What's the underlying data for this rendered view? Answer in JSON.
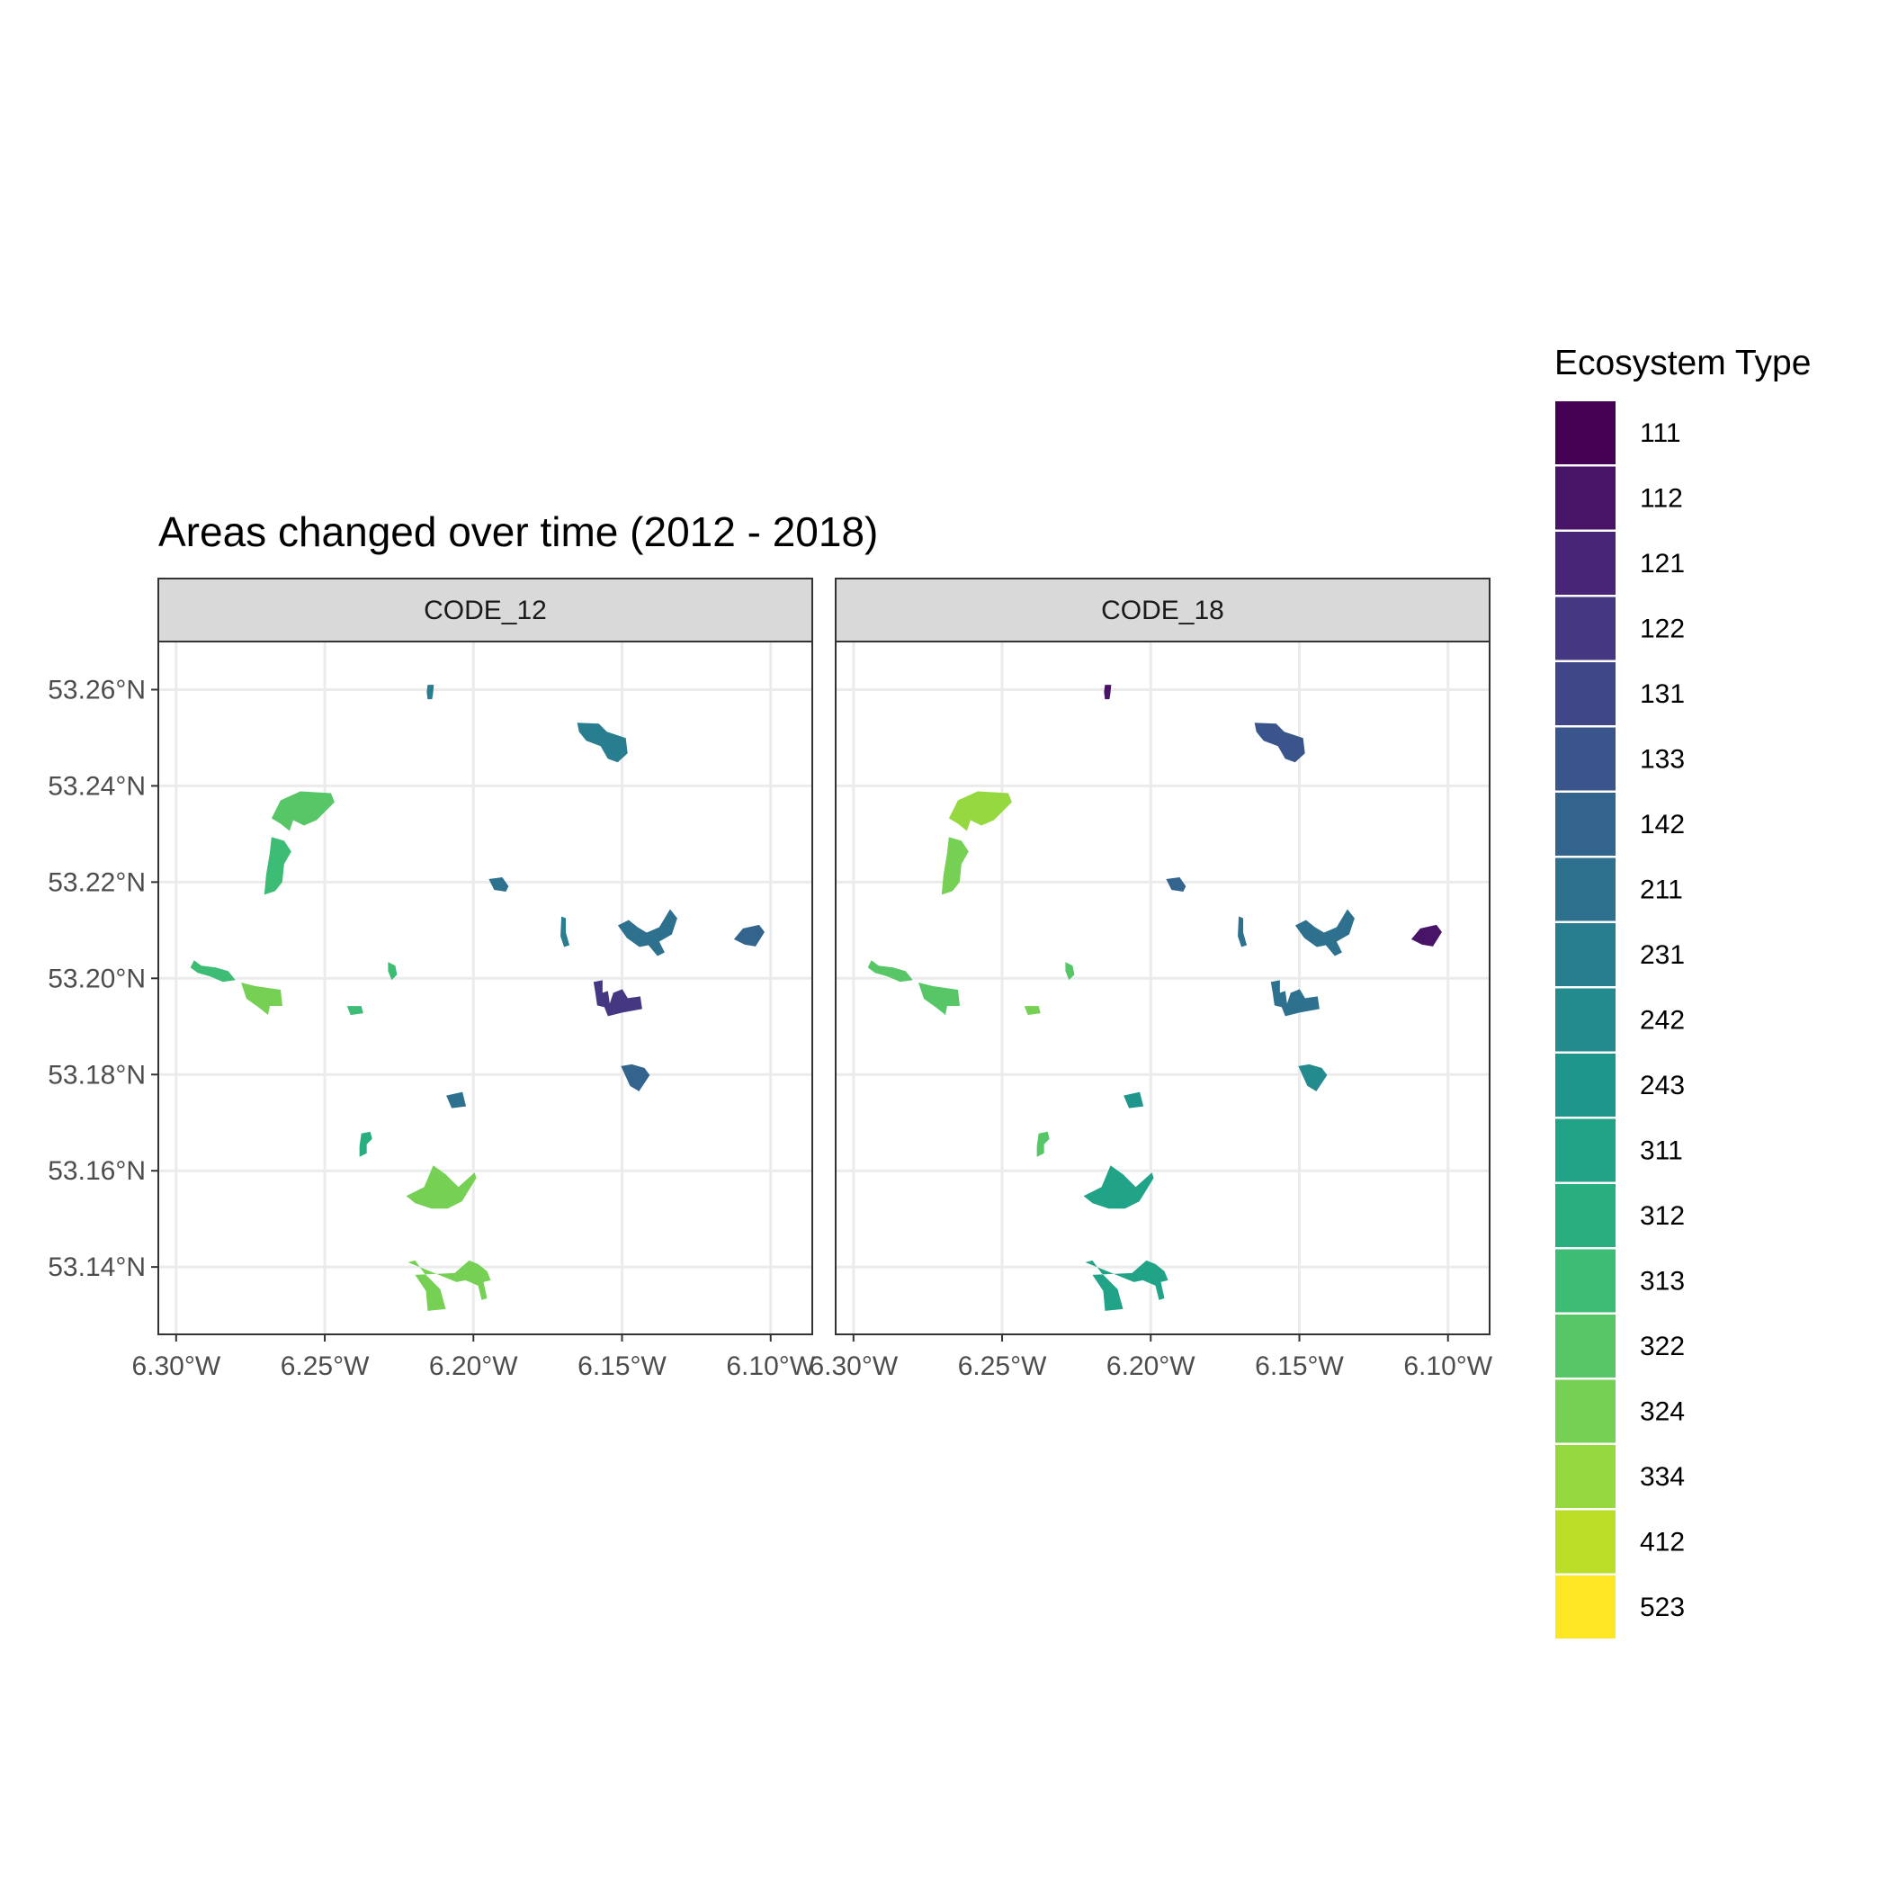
{
  "title": "Areas changed over time (2012 - 2018)",
  "panels": [
    {
      "label": "CODE_12"
    },
    {
      "label": "CODE_18"
    }
  ],
  "axes": {
    "x": {
      "ticks": [
        "6.30°W",
        "6.25°W",
        "6.20°W",
        "6.15°W",
        "6.10°W"
      ],
      "range": [
        -6.306,
        -6.086
      ]
    },
    "y": {
      "ticks": [
        "53.26°N",
        "53.24°N",
        "53.22°N",
        "53.20°N",
        "53.18°N",
        "53.16°N",
        "53.14°N"
      ],
      "range": [
        53.126,
        53.27
      ]
    }
  },
  "legend": {
    "title": "Ecosystem Type",
    "position": "right",
    "items": [
      {
        "code": "111",
        "color": "#440154"
      },
      {
        "code": "112",
        "color": "#481467"
      },
      {
        "code": "121",
        "color": "#482576"
      },
      {
        "code": "122",
        "color": "#453781"
      },
      {
        "code": "131",
        "color": "#3F4788"
      },
      {
        "code": "133",
        "color": "#39558C"
      },
      {
        "code": "142",
        "color": "#32648E"
      },
      {
        "code": "211",
        "color": "#2D718E"
      },
      {
        "code": "231",
        "color": "#287D8E"
      },
      {
        "code": "242",
        "color": "#238A8D"
      },
      {
        "code": "243",
        "color": "#1F968B"
      },
      {
        "code": "311",
        "color": "#20A386"
      },
      {
        "code": "312",
        "color": "#29AF7F"
      },
      {
        "code": "313",
        "color": "#3CBC75"
      },
      {
        "code": "322",
        "color": "#56C667"
      },
      {
        "code": "324",
        "color": "#75D054"
      },
      {
        "code": "334",
        "color": "#95D840"
      },
      {
        "code": "412",
        "color": "#BADE28"
      },
      {
        "code": "523",
        "color": "#FDE725"
      }
    ]
  },
  "map_data": {
    "type": "choropleth",
    "grid": true,
    "areas": [
      {
        "lon": -6.2145,
        "lat": 53.2595,
        "code12": "231",
        "code18": "112"
      },
      {
        "lon": -6.156,
        "lat": 53.249,
        "code12": "231",
        "code18": "133"
      },
      {
        "lon": -6.257,
        "lat": 53.2355,
        "code12": "322",
        "code18": "334"
      },
      {
        "lon": -6.2655,
        "lat": 53.223,
        "code12": "313",
        "code18": "324"
      },
      {
        "lon": -6.1915,
        "lat": 53.2195,
        "code12": "211",
        "code18": "142"
      },
      {
        "lon": -6.1695,
        "lat": 53.2095,
        "code12": "231",
        "code18": "211"
      },
      {
        "lon": -6.1405,
        "lat": 53.2095,
        "code12": "211",
        "code18": "211"
      },
      {
        "lon": -6.1075,
        "lat": 53.2085,
        "code12": "142",
        "code18": "112"
      },
      {
        "lon": -6.2855,
        "lat": 53.2015,
        "code12": "313",
        "code18": "322"
      },
      {
        "lon": -6.2715,
        "lat": 53.1965,
        "code12": "324",
        "code18": "322"
      },
      {
        "lon": -6.2275,
        "lat": 53.2015,
        "code12": "313",
        "code18": "322"
      },
      {
        "lon": -6.2395,
        "lat": 53.1935,
        "code12": "313",
        "code18": "324"
      },
      {
        "lon": -6.1505,
        "lat": 53.1955,
        "code12": "122",
        "code18": "211"
      },
      {
        "lon": -6.1455,
        "lat": 53.1795,
        "code12": "142",
        "code18": "242"
      },
      {
        "lon": -6.2055,
        "lat": 53.1745,
        "code12": "211",
        "code18": "243"
      },
      {
        "lon": -6.2365,
        "lat": 53.1655,
        "code12": "312",
        "code18": "322"
      },
      {
        "lon": -6.2105,
        "lat": 53.1555,
        "code12": "324",
        "code18": "311"
      },
      {
        "lon": -6.2075,
        "lat": 53.1365,
        "code12": "324",
        "code18": "311"
      }
    ]
  }
}
